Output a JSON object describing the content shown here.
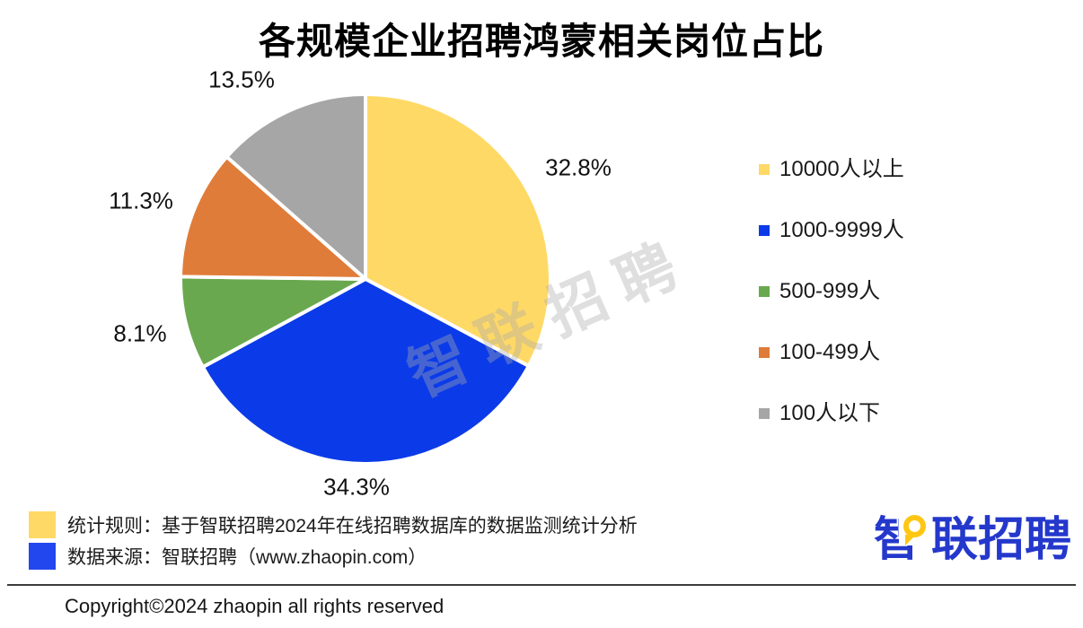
{
  "page": {
    "copyright": "Copyright©2024 zhaopin all rights reserved"
  },
  "chart_data": {
    "type": "pie",
    "title": "各规模企业招聘鸿蒙相关岗位占比",
    "start_angle_deg": 0,
    "direction": "clockwise",
    "legend_position": "right",
    "slice_border_color": "#FFFFFF",
    "slices": [
      {
        "label": "10000人以上",
        "value": 32.8,
        "display": "32.8%",
        "color": "#FFD966"
      },
      {
        "label": "1000-9999人",
        "value": 34.3,
        "display": "34.3%",
        "color": "#0B3BE8"
      },
      {
        "label": "500-999人",
        "value": 8.1,
        "display": "8.1%",
        "color": "#6AA84F"
      },
      {
        "label": "100-499人",
        "value": 11.3,
        "display": "11.3%",
        "color": "#E07C39"
      },
      {
        "label": "100人以下",
        "value": 13.5,
        "display": "13.5%",
        "color": "#A6A6A6"
      }
    ]
  },
  "watermark": {
    "text": "智联招聘"
  },
  "footnotes": [
    {
      "marker_color": "#FFD966",
      "text": "统计规则：基于智联招聘2024年在线招聘数据库的数据监测统计分析"
    },
    {
      "marker_color": "#2347EF",
      "text": "数据来源：智联招聘（www.zhaopin.com）"
    }
  ],
  "logo": {
    "text": "智联招聘",
    "first_char": "智",
    "rest_chars": "联招聘",
    "color": "#2438CC",
    "accent_color": "#FFC613"
  }
}
